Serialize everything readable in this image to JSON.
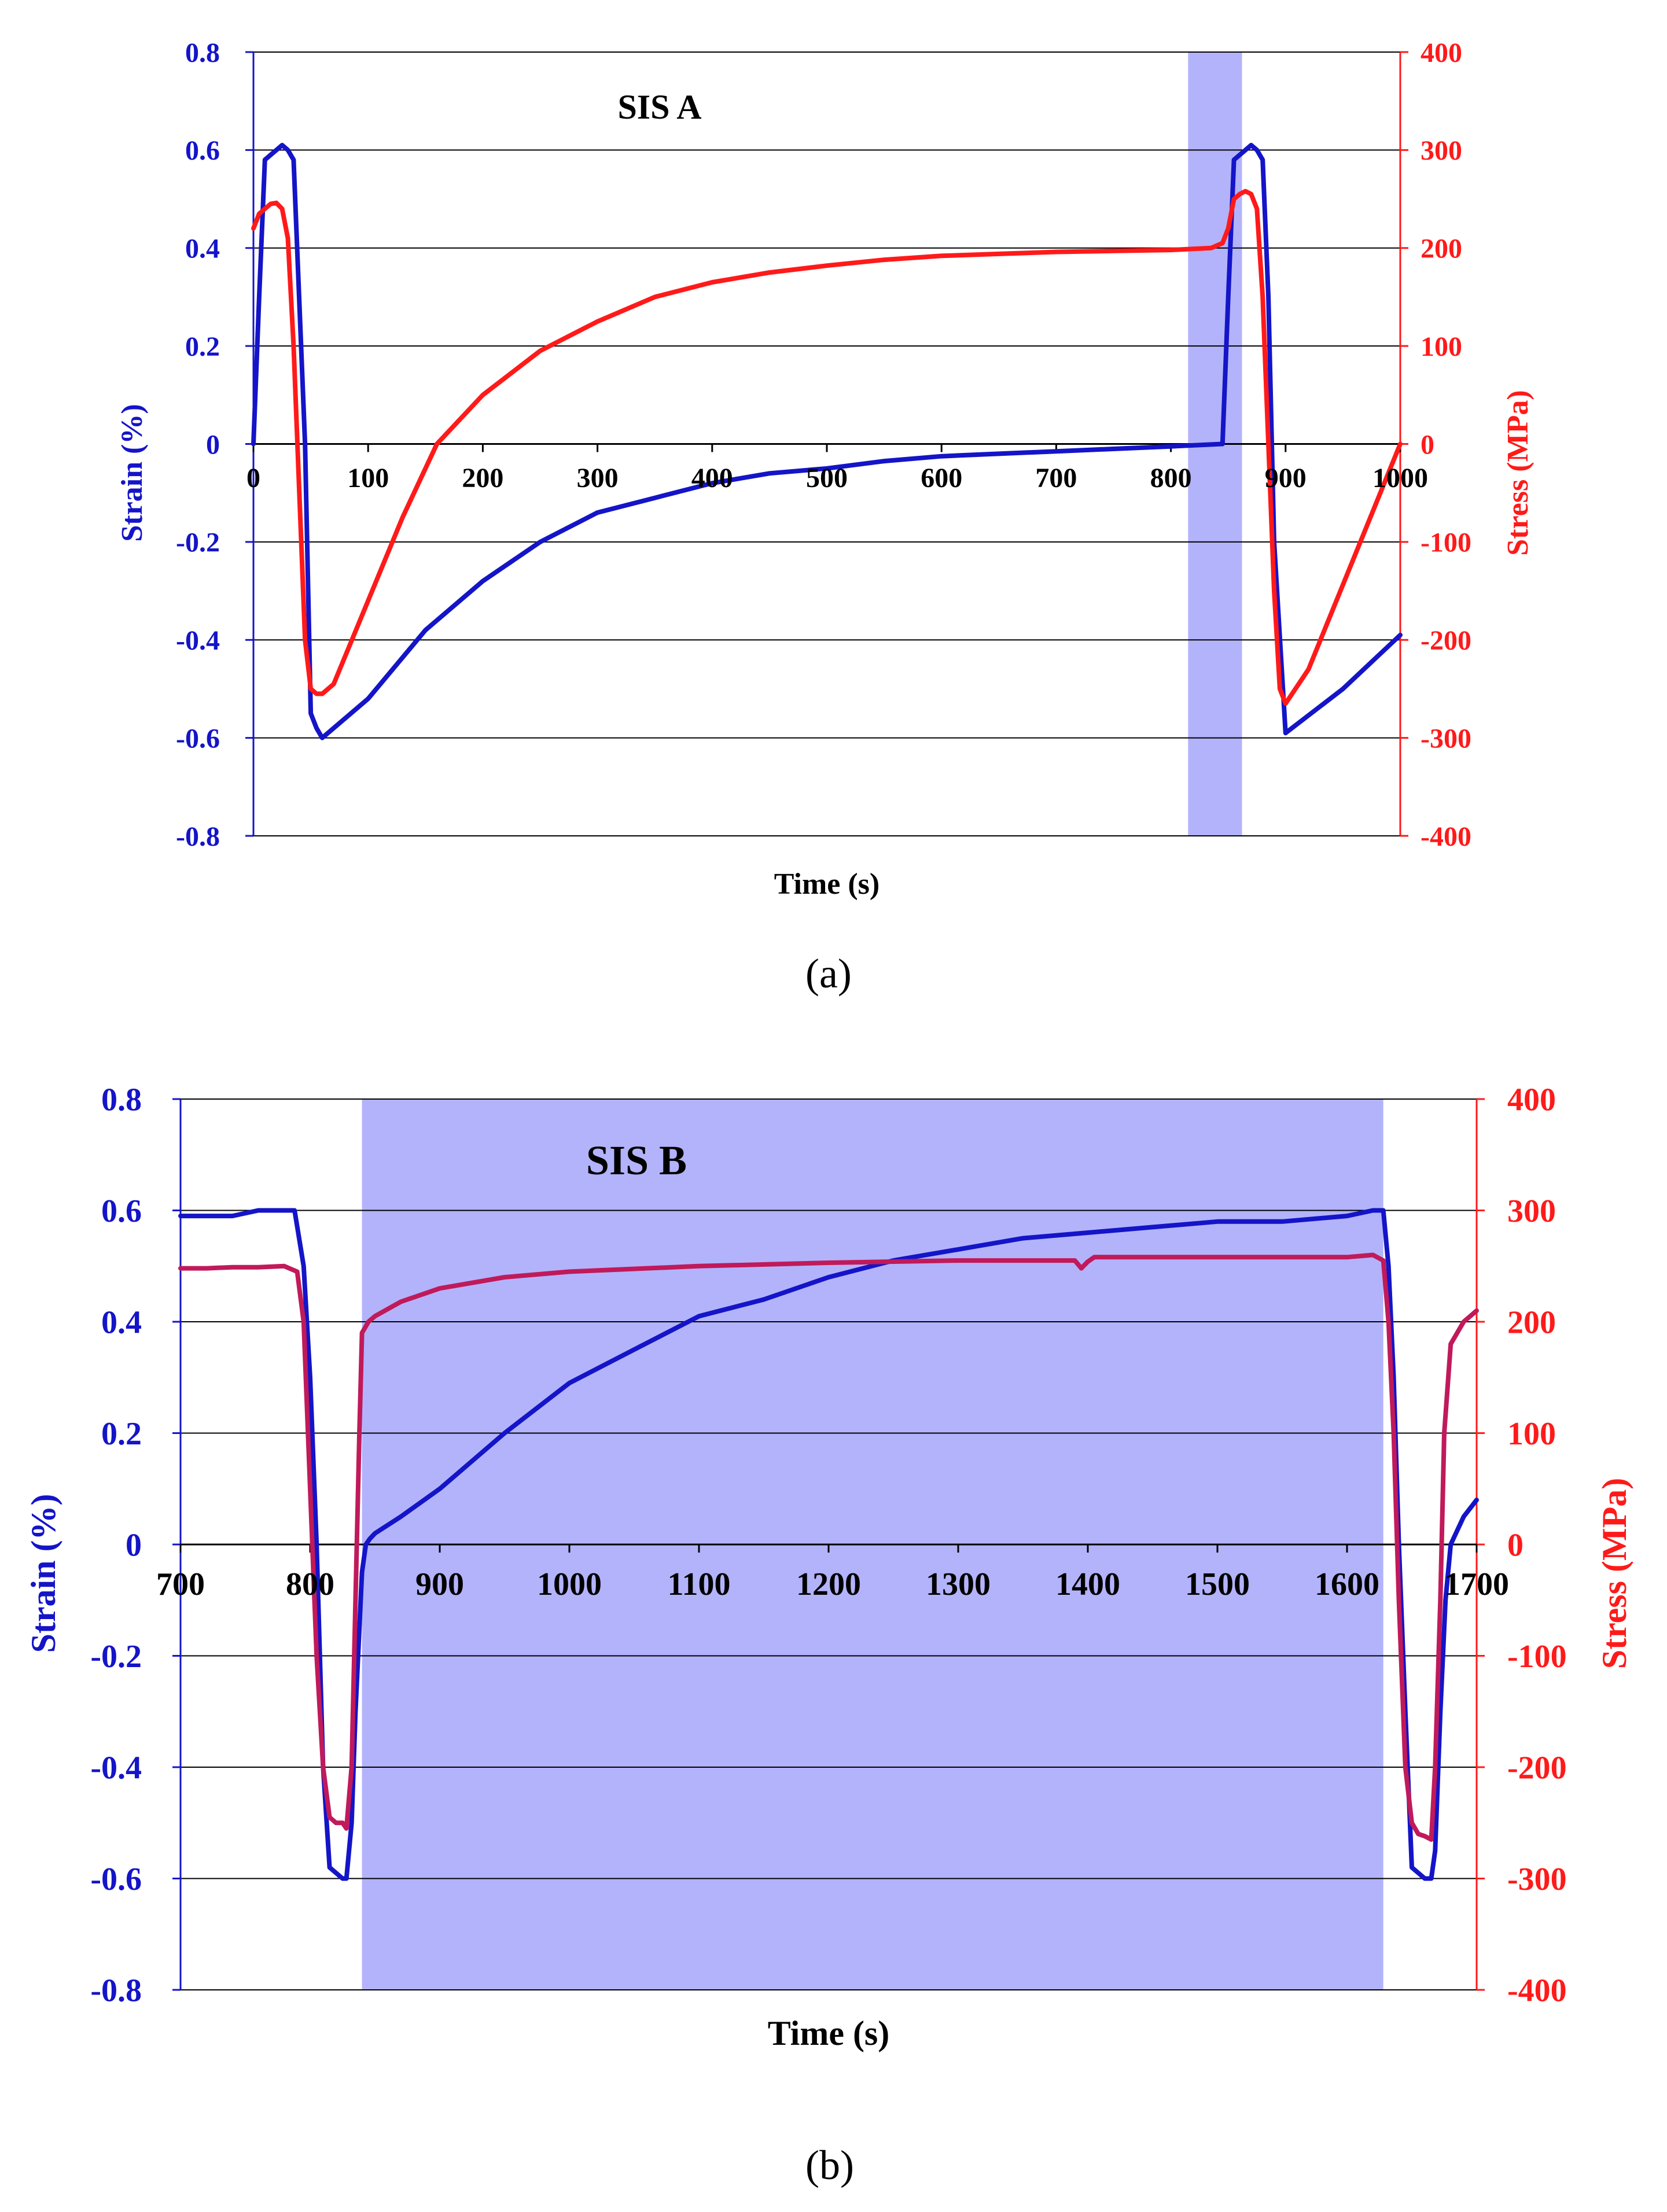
{
  "colors": {
    "strain": "#1414c8",
    "stress": "#ff1a1a",
    "stress_overlay": "#c01a5a",
    "band": "#b3b3fb",
    "grid": "#000000",
    "text": "#000000"
  },
  "chart_data": [
    {
      "type": "line",
      "panel_label": "a",
      "caption": "(a)",
      "title": "SIS A",
      "xlabel": "Time (s)",
      "ylabel_left": "Strain (%)",
      "ylabel_right": "Stress (MPa)",
      "xlim": [
        0,
        1000
      ],
      "ylim_left": [
        -0.8,
        0.8
      ],
      "ylim_right": [
        -400,
        400
      ],
      "xticks": [
        0,
        100,
        200,
        300,
        400,
        500,
        600,
        700,
        800,
        900,
        1000
      ],
      "xtick_labels": [
        "0",
        "100",
        "200",
        "300",
        "400",
        "500",
        "600",
        "700",
        "800",
        "900",
        "1000"
      ],
      "yticks_left": [
        -0.8,
        -0.6,
        -0.4,
        -0.2,
        0,
        0.2,
        0.4,
        0.6,
        0.8
      ],
      "ytick_labels_left": [
        "-0.8",
        "-0.6",
        "-0.4",
        "-0.2",
        "0",
        "0.2",
        "0.4",
        "0.6",
        "0.8"
      ],
      "yticks_right": [
        -400,
        -300,
        -200,
        -100,
        0,
        100,
        200,
        300,
        400
      ],
      "ytick_labels_right": [
        "-400",
        "-300",
        "-200",
        "-100",
        "0",
        "100",
        "200",
        "300",
        "400"
      ],
      "grid": true,
      "shaded_region": [
        815,
        862
      ],
      "series": [
        {
          "name": "Strain",
          "axis": "left",
          "x": [
            0,
            5,
            10,
            15,
            20,
            25,
            30,
            35,
            45,
            50,
            55,
            60,
            70,
            100,
            150,
            200,
            250,
            300,
            350,
            400,
            450,
            500,
            550,
            600,
            650,
            700,
            750,
            800,
            845,
            850,
            855,
            860,
            865,
            870,
            875,
            880,
            885,
            890,
            900,
            950,
            1000
          ],
          "y": [
            0.0,
            0.3,
            0.58,
            0.59,
            0.6,
            0.61,
            0.6,
            0.58,
            0.0,
            -0.55,
            -0.58,
            -0.6,
            -0.58,
            -0.52,
            -0.38,
            -0.28,
            -0.2,
            -0.14,
            -0.11,
            -0.08,
            -0.06,
            -0.05,
            -0.035,
            -0.025,
            -0.02,
            -0.015,
            -0.01,
            -0.005,
            0.0,
            0.3,
            0.58,
            0.59,
            0.6,
            0.61,
            0.6,
            0.58,
            0.3,
            -0.2,
            -0.59,
            -0.5,
            -0.39
          ]
        },
        {
          "name": "Stress",
          "axis": "right",
          "x": [
            0,
            5,
            10,
            15,
            20,
            25,
            30,
            35,
            40,
            45,
            50,
            55,
            60,
            70,
            100,
            130,
            160,
            200,
            250,
            300,
            350,
            400,
            450,
            500,
            550,
            600,
            650,
            700,
            750,
            800,
            835,
            845,
            850,
            855,
            860,
            865,
            870,
            875,
            880,
            885,
            890,
            895,
            900,
            920,
            1000
          ],
          "y": [
            220,
            235,
            240,
            245,
            246,
            240,
            210,
            100,
            -50,
            -200,
            -250,
            -255,
            -255,
            -245,
            -160,
            -75,
            0,
            50,
            95,
            125,
            150,
            165,
            175,
            182,
            188,
            192,
            194,
            196,
            197,
            198,
            200,
            205,
            220,
            250,
            255,
            258,
            255,
            240,
            150,
            0,
            -150,
            -250,
            -265,
            -230,
            0
          ]
        }
      ]
    },
    {
      "type": "line",
      "panel_label": "b",
      "caption": "(b)",
      "title": "SIS B",
      "xlabel": "Time (s)",
      "ylabel_left": "Strain (%)",
      "ylabel_right": "Stress (MPa)",
      "xlim": [
        700,
        1700
      ],
      "ylim_left": [
        -0.8,
        0.8
      ],
      "ylim_right": [
        -400,
        400
      ],
      "xticks": [
        700,
        800,
        900,
        1000,
        1100,
        1200,
        1300,
        1400,
        1500,
        1600,
        1700
      ],
      "xtick_labels": [
        "700",
        "800",
        "900",
        "1000",
        "1100",
        "1200",
        "1300",
        "1400",
        "1500",
        "1600",
        "1700"
      ],
      "yticks_left": [
        -0.8,
        -0.6,
        -0.4,
        -0.2,
        0,
        0.2,
        0.4,
        0.6,
        0.8
      ],
      "ytick_labels_left": [
        "-0.8",
        "-0.6",
        "-0.4",
        "-0.2",
        "0",
        "0.2",
        "0.4",
        "0.6",
        "0.8"
      ],
      "yticks_right": [
        -400,
        -300,
        -200,
        -100,
        0,
        100,
        200,
        300,
        400
      ],
      "ytick_labels_right": [
        "-400",
        "-300",
        "-200",
        "-100",
        "0",
        "100",
        "200",
        "300",
        "400"
      ],
      "grid": true,
      "shaded_region": [
        840,
        1628
      ],
      "series": [
        {
          "name": "Strain",
          "axis": "left",
          "x": [
            700,
            720,
            740,
            760,
            780,
            788,
            795,
            800,
            805,
            810,
            815,
            820,
            825,
            828,
            832,
            835,
            840,
            843,
            846,
            850,
            870,
            900,
            950,
            1000,
            1050,
            1100,
            1150,
            1200,
            1250,
            1300,
            1350,
            1400,
            1450,
            1500,
            1550,
            1600,
            1620,
            1628,
            1632,
            1636,
            1640,
            1645,
            1650,
            1655,
            1660,
            1665,
            1668,
            1672,
            1676,
            1680,
            1690,
            1700
          ],
          "y": [
            0.59,
            0.59,
            0.59,
            0.6,
            0.6,
            0.6,
            0.5,
            0.3,
            0.0,
            -0.4,
            -0.58,
            -0.59,
            -0.6,
            -0.6,
            -0.5,
            -0.3,
            -0.05,
            0.0,
            0.01,
            0.02,
            0.05,
            0.1,
            0.2,
            0.29,
            0.35,
            0.41,
            0.44,
            0.48,
            0.51,
            0.53,
            0.55,
            0.56,
            0.57,
            0.58,
            0.58,
            0.59,
            0.6,
            0.6,
            0.5,
            0.3,
            0.0,
            -0.3,
            -0.58,
            -0.59,
            -0.6,
            -0.6,
            -0.55,
            -0.3,
            -0.1,
            0.0,
            0.05,
            0.08
          ]
        },
        {
          "name": "Stress",
          "axis": "right",
          "x": [
            700,
            720,
            740,
            760,
            780,
            790,
            795,
            800,
            805,
            810,
            815,
            820,
            825,
            828,
            832,
            835,
            838,
            840,
            845,
            850,
            870,
            900,
            950,
            1000,
            1100,
            1200,
            1300,
            1390,
            1395,
            1400,
            1405,
            1450,
            1500,
            1550,
            1600,
            1620,
            1628,
            1632,
            1636,
            1640,
            1645,
            1650,
            1655,
            1660,
            1665,
            1668,
            1672,
            1675,
            1680,
            1690,
            1700
          ],
          "y": [
            248,
            248,
            249,
            249,
            250,
            245,
            200,
            50,
            -100,
            -200,
            -245,
            -250,
            -250,
            -255,
            -200,
            -50,
            100,
            190,
            200,
            205,
            218,
            230,
            240,
            245,
            250,
            253,
            255,
            255,
            248,
            254,
            258,
            258,
            258,
            258,
            258,
            260,
            255,
            200,
            100,
            -50,
            -200,
            -250,
            -260,
            -262,
            -265,
            -200,
            -50,
            100,
            180,
            200,
            210
          ]
        }
      ]
    }
  ]
}
